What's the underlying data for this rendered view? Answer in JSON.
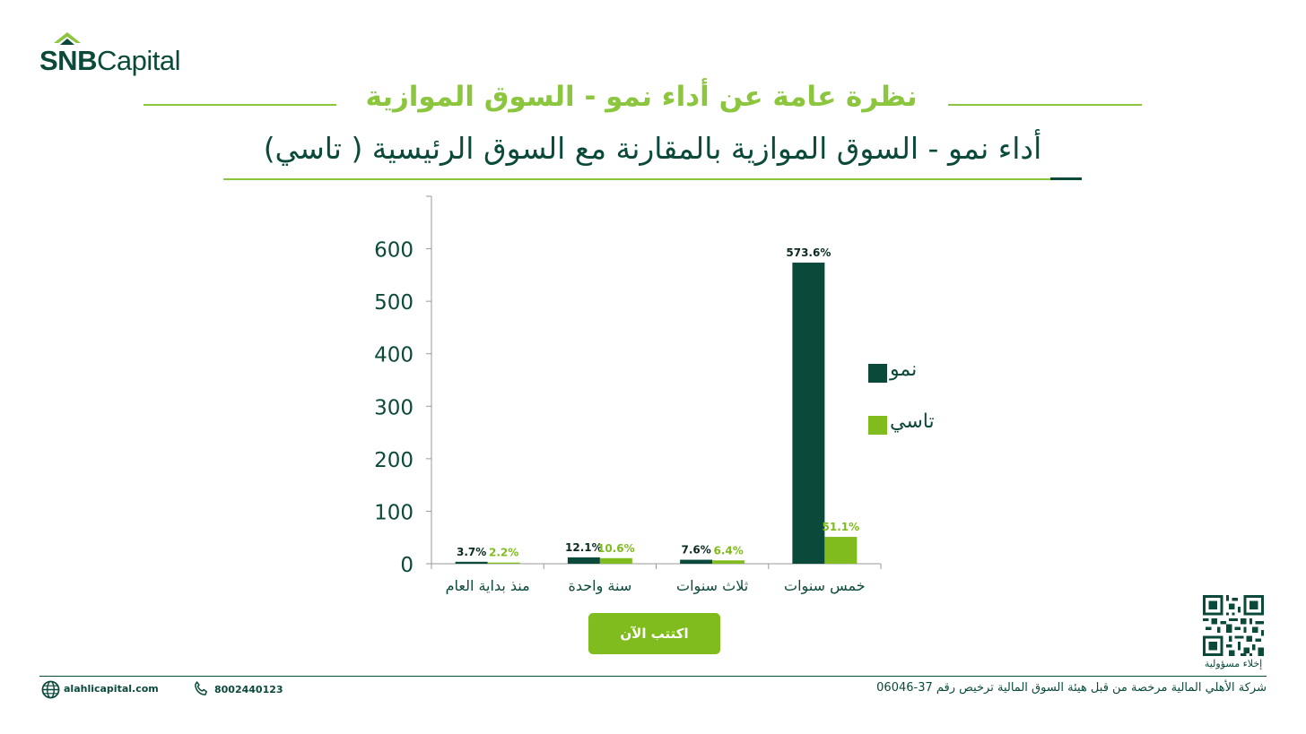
{
  "brand": {
    "name_bold": "SNB",
    "name_rest": "Capital"
  },
  "header": {
    "title": "نظرة عامة عن أداء نمو - السوق الموازية",
    "subtitle": "أداء نمو - السوق الموازية بالمقارنة مع السوق الرئيسية ( تاسي)"
  },
  "colors": {
    "dark_green": "#0b4a3b",
    "light_green": "#80bc1e",
    "title_green": "#8cc63f"
  },
  "chart_data": {
    "type": "bar",
    "categories": [
      "منذ بداية العام",
      "سنة واحدة",
      "ثلاث سنوات",
      "خمس سنوات"
    ],
    "series": [
      {
        "name": "نمو",
        "values": [
          3.7,
          12.1,
          7.6,
          573.6
        ],
        "labels": [
          "3.7%",
          "12.1%",
          "7.6%",
          "573.6%"
        ],
        "color": "#0b4a3b"
      },
      {
        "name": "تاسي",
        "values": [
          2.2,
          10.6,
          6.4,
          51.1
        ],
        "labels": [
          "2.2%",
          "10.6%",
          "6.4%",
          "51.1%"
        ],
        "color": "#80bc1e"
      }
    ],
    "yticks": [
      "0",
      "100",
      "200",
      "300",
      "400",
      "500",
      "600"
    ],
    "ylim": [
      0,
      700
    ],
    "legend_position": "right",
    "grid": false
  },
  "cta": {
    "label": "اكتتب الآن"
  },
  "disclaimer": {
    "label": "إخلاء مسؤولية"
  },
  "footer": {
    "website": "alahlicapital.com",
    "phone": "8002440123",
    "license": "شركة الأهلي المالية مرخصة من قبل هيئة السوق المالية ترخيص رقم 37-06046"
  },
  "icons": {
    "globe": "globe-icon",
    "phone": "phone-icon",
    "qr": "qr-code-icon"
  }
}
